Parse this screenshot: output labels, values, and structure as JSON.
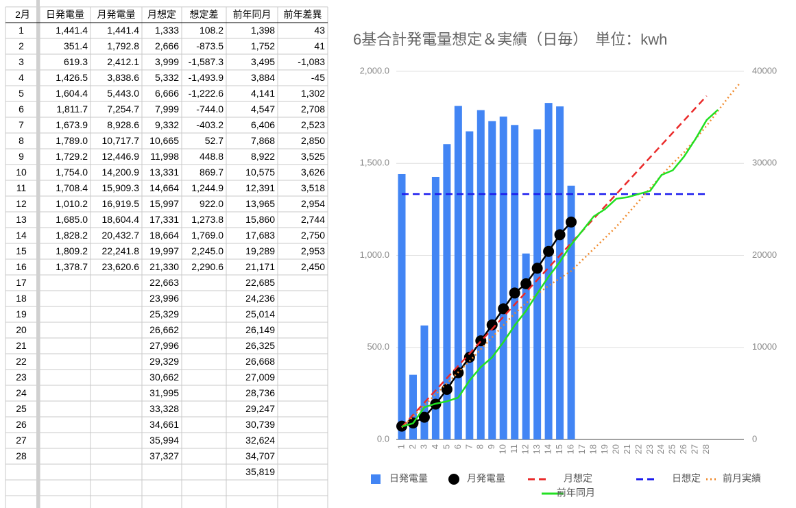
{
  "table": {
    "header": [
      "2月",
      "日発電量",
      "月発電量",
      "月想定",
      "想定差",
      "前年同月",
      "前年差異"
    ],
    "rows": [
      [
        "1",
        "1,441.4",
        "1,441.4",
        "1,333",
        "108.2",
        "1,398",
        "43"
      ],
      [
        "2",
        "351.4",
        "1,792.8",
        "2,666",
        "-873.5",
        "1,752",
        "41"
      ],
      [
        "3",
        "619.3",
        "2,412.1",
        "3,999",
        "-1,587.3",
        "3,495",
        "-1,083"
      ],
      [
        "4",
        "1,426.5",
        "3,838.6",
        "5,332",
        "-1,493.9",
        "3,884",
        "-45"
      ],
      [
        "5",
        "1,604.4",
        "5,443.0",
        "6,666",
        "-1,222.6",
        "4,141",
        "1,302"
      ],
      [
        "6",
        "1,811.7",
        "7,254.7",
        "7,999",
        "-744.0",
        "4,547",
        "2,708"
      ],
      [
        "7",
        "1,673.9",
        "8,928.6",
        "9,332",
        "-403.2",
        "6,406",
        "2,523"
      ],
      [
        "8",
        "1,789.0",
        "10,717.7",
        "10,665",
        "52.7",
        "7,868",
        "2,850"
      ],
      [
        "9",
        "1,729.2",
        "12,446.9",
        "11,998",
        "448.8",
        "8,922",
        "3,525"
      ],
      [
        "10",
        "1,754.0",
        "14,200.9",
        "13,331",
        "869.7",
        "10,575",
        "3,626"
      ],
      [
        "11",
        "1,708.4",
        "15,909.3",
        "14,664",
        "1,244.9",
        "12,391",
        "3,518"
      ],
      [
        "12",
        "1,010.2",
        "16,919.5",
        "15,997",
        "922.0",
        "13,965",
        "2,954"
      ],
      [
        "13",
        "1,685.0",
        "18,604.4",
        "17,331",
        "1,273.8",
        "15,860",
        "2,744"
      ],
      [
        "14",
        "1,828.2",
        "20,432.7",
        "18,664",
        "1,769.0",
        "17,683",
        "2,750"
      ],
      [
        "15",
        "1,809.2",
        "22,241.8",
        "19,997",
        "2,245.0",
        "19,289",
        "2,953"
      ],
      [
        "16",
        "1,378.7",
        "23,620.6",
        "21,330",
        "2,290.6",
        "21,171",
        "2,450"
      ],
      [
        "17",
        null,
        null,
        "22,663",
        null,
        "22,685",
        null
      ],
      [
        "18",
        null,
        null,
        "23,996",
        null,
        "24,236",
        null
      ],
      [
        "19",
        null,
        null,
        "25,329",
        null,
        "25,014",
        null
      ],
      [
        "20",
        null,
        null,
        "26,662",
        null,
        "26,149",
        null
      ],
      [
        "21",
        null,
        null,
        "27,996",
        null,
        "26,325",
        null
      ],
      [
        "22",
        null,
        null,
        "29,329",
        null,
        "26,668",
        null
      ],
      [
        "23",
        null,
        null,
        "30,662",
        null,
        "27,009",
        null
      ],
      [
        "24",
        null,
        null,
        "31,995",
        null,
        "28,736",
        null
      ],
      [
        "25",
        null,
        null,
        "33,328",
        null,
        "29,247",
        null
      ],
      [
        "26",
        null,
        null,
        "34,661",
        null,
        "30,739",
        null
      ],
      [
        "27",
        null,
        null,
        "35,994",
        null,
        "32,624",
        null
      ],
      [
        "28",
        null,
        null,
        "37,327",
        null,
        "34,707",
        null
      ],
      [
        null,
        null,
        null,
        null,
        null,
        "35,819",
        null
      ]
    ]
  },
  "chart_data": {
    "type": "combo",
    "title": "6基合計発電量想定＆実績（日毎）　単位：kwh",
    "categories": [
      "1",
      "2",
      "3",
      "4",
      "5",
      "6",
      "7",
      "8",
      "9",
      "10",
      "11",
      "12",
      "13",
      "14",
      "15",
      "16",
      "17",
      "18",
      "19",
      "20",
      "21",
      "22",
      "23",
      "24",
      "25",
      "26",
      "27",
      "28",
      null,
      null,
      null
    ],
    "ylim": [
      0,
      2000
    ],
    "yticks": [
      {
        "value": 0,
        "label": "0.0"
      },
      {
        "value": 500,
        "label": "500.0"
      },
      {
        "value": 1000,
        "label": "1,000.0"
      },
      {
        "value": 1500,
        "label": "1,500.0"
      },
      {
        "value": 2000,
        "label": "2,000.0"
      }
    ],
    "y2lim": [
      0,
      40000
    ],
    "y2ticks": [
      0,
      10000,
      20000,
      30000,
      40000
    ],
    "grid": true,
    "series": [
      {
        "name": "日発電量",
        "type": "bar",
        "color": "#4285f4",
        "axis": "y",
        "values": [
          1441.4,
          351.4,
          619.3,
          1426.5,
          1604.4,
          1811.7,
          1673.9,
          1789.0,
          1729.2,
          1754.0,
          1708.4,
          1010.2,
          1685.0,
          1828.2,
          1809.2,
          1378.7,
          null,
          null,
          null,
          null,
          null,
          null,
          null,
          null,
          null,
          null,
          null,
          null,
          null,
          null,
          null
        ]
      },
      {
        "name": "月発電量",
        "type": "line",
        "marker": true,
        "color": "#000000",
        "axis": "y2",
        "values": [
          1441.4,
          1792.8,
          2412.1,
          3838.6,
          5443.0,
          7254.7,
          8928.6,
          10717.7,
          12446.9,
          14200.9,
          15909.3,
          16919.5,
          18604.4,
          20432.7,
          22241.8,
          23620.6,
          null,
          null,
          null,
          null,
          null,
          null,
          null,
          null,
          null,
          null,
          null,
          null,
          null,
          null,
          null
        ]
      },
      {
        "name": "月想定",
        "type": "line",
        "dash": "dashed",
        "color": "#ea2a2a",
        "axis": "y2",
        "values": [
          1333,
          2666,
          3999,
          5332,
          6666,
          7999,
          9332,
          10665,
          11998,
          13331,
          14664,
          15997,
          17331,
          18664,
          19997,
          21330,
          22663,
          23996,
          25329,
          26662,
          27996,
          29329,
          30662,
          31995,
          33328,
          34661,
          35994,
          37327,
          null,
          null,
          null
        ]
      },
      {
        "name": "日想定",
        "type": "line",
        "dash": "dashed",
        "color": "#1a1aee",
        "axis": "y",
        "values": [
          1333,
          1333,
          1333,
          1333,
          1333,
          1333,
          1333,
          1333,
          1333,
          1333,
          1333,
          1333,
          1333,
          1333,
          1333,
          1333,
          1333,
          1333,
          1333,
          1333,
          1333,
          1333,
          1333,
          1333,
          1333,
          1333,
          1333,
          1333,
          null,
          null,
          null
        ]
      },
      {
        "name": "前月実績",
        "type": "line",
        "dash": "dotted",
        "color": "#f08a2c",
        "axis": "y2",
        "values": [
          1300,
          2500,
          3700,
          4900,
          6100,
          7300,
          8500,
          9800,
          11100,
          12400,
          13700,
          14800,
          15800,
          16700,
          17500,
          18300,
          19500,
          20700,
          21900,
          23100,
          24500,
          25900,
          27300,
          28700,
          30000,
          31200,
          32600,
          34100,
          35700,
          37300,
          38800
        ]
      },
      {
        "name": "前年同月",
        "type": "line",
        "color": "#22e022",
        "axis": "y2",
        "values": [
          1398,
          1752,
          3495,
          3884,
          4141,
          4547,
          6406,
          7868,
          8922,
          10575,
          12391,
          13965,
          15860,
          17683,
          19289,
          21171,
          22685,
          24236,
          25014,
          26149,
          26325,
          26668,
          27009,
          28736,
          29247,
          30739,
          32624,
          34707,
          35819,
          null,
          null
        ]
      }
    ]
  }
}
